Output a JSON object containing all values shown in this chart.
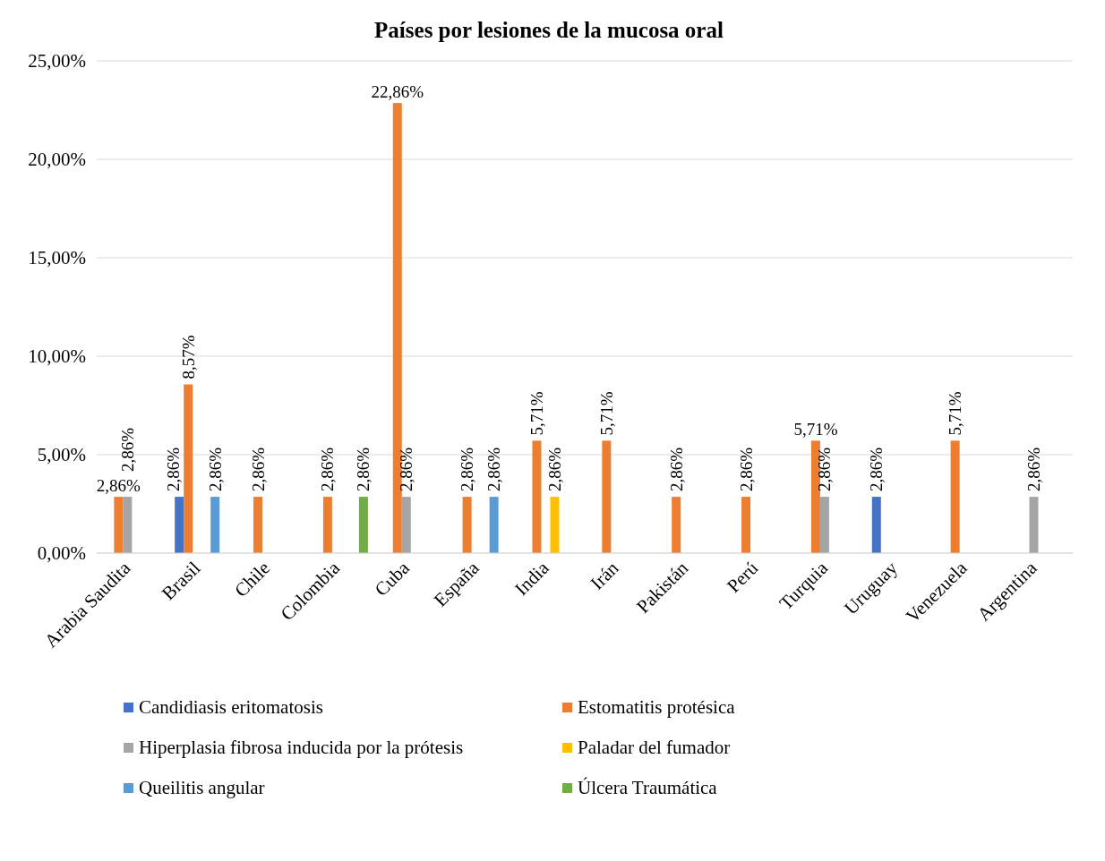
{
  "chart_data": {
    "type": "bar",
    "title": "Países por lesiones de la mucosa oral",
    "categories": [
      "Arabia Saudita",
      "Brasil",
      "Chile",
      "Colombia",
      "Cuba",
      "España",
      "India",
      "Irán",
      "Pakistán",
      "Perú",
      "Turquia",
      "Uruguay",
      "Venezuela",
      "Argentina"
    ],
    "series": [
      {
        "name": "Candidiasis eritomatosis",
        "color": "#4472c4",
        "values": [
          null,
          2.86,
          null,
          null,
          null,
          null,
          null,
          null,
          null,
          null,
          null,
          2.86,
          null,
          null
        ],
        "value_labels": [
          null,
          "2,86%",
          null,
          null,
          null,
          null,
          null,
          null,
          null,
          null,
          null,
          "2,86%",
          null,
          null
        ]
      },
      {
        "name": "Estomatitis protésica",
        "color": "#ed7d31",
        "values": [
          2.86,
          8.57,
          2.86,
          2.86,
          22.86,
          2.86,
          5.71,
          5.71,
          2.86,
          2.86,
          5.71,
          null,
          5.71,
          null
        ],
        "value_labels": [
          "2,86%",
          "8,57%",
          "2,86%",
          "2,86%",
          "22,86%",
          "2,86%",
          "5,71%",
          "5,71%",
          "2,86%",
          "2,86%",
          "5,71%",
          null,
          "5,71%",
          null
        ]
      },
      {
        "name": "Hiperplasia fibrosa inducida por la prótesis",
        "color": "#a5a5a5",
        "values": [
          2.86,
          null,
          null,
          null,
          2.86,
          null,
          null,
          null,
          null,
          null,
          2.86,
          null,
          null,
          2.86
        ],
        "value_labels": [
          "2,86%",
          null,
          null,
          null,
          "2,86%",
          null,
          null,
          null,
          null,
          null,
          "2,86%",
          null,
          null,
          "2,86%"
        ]
      },
      {
        "name": "Paladar del fumador",
        "color": "#ffc000",
        "values": [
          null,
          null,
          null,
          null,
          null,
          null,
          2.86,
          null,
          null,
          null,
          null,
          null,
          null,
          null
        ],
        "value_labels": [
          null,
          null,
          null,
          null,
          null,
          null,
          "2,86%",
          null,
          null,
          null,
          null,
          null,
          null,
          null
        ]
      },
      {
        "name": "Queilitis angular",
        "color": "#5b9bd5",
        "values": [
          null,
          2.86,
          null,
          null,
          null,
          2.86,
          null,
          null,
          null,
          null,
          null,
          null,
          null,
          null
        ],
        "value_labels": [
          null,
          "2,86%",
          null,
          null,
          null,
          "2,86%",
          null,
          null,
          null,
          null,
          null,
          null,
          null,
          null
        ]
      },
      {
        "name": "Úlcera Traumática",
        "color": "#70ad47",
        "values": [
          null,
          null,
          null,
          2.86,
          null,
          null,
          null,
          null,
          null,
          null,
          null,
          null,
          null,
          null
        ],
        "value_labels": [
          null,
          null,
          null,
          "2,86%",
          null,
          null,
          null,
          null,
          null,
          null,
          null,
          null,
          null,
          null
        ]
      }
    ],
    "ylim": [
      0,
      25
    ],
    "yticks": [
      {
        "value": 0,
        "label": "0,00%"
      },
      {
        "value": 5,
        "label": "5,00%"
      },
      {
        "value": 10,
        "label": "10,00%"
      },
      {
        "value": 15,
        "label": "15,00%"
      },
      {
        "value": 20,
        "label": "20,00%"
      },
      {
        "value": 25,
        "label": "25,00%"
      }
    ],
    "grid": "y",
    "legend": "bottom"
  }
}
